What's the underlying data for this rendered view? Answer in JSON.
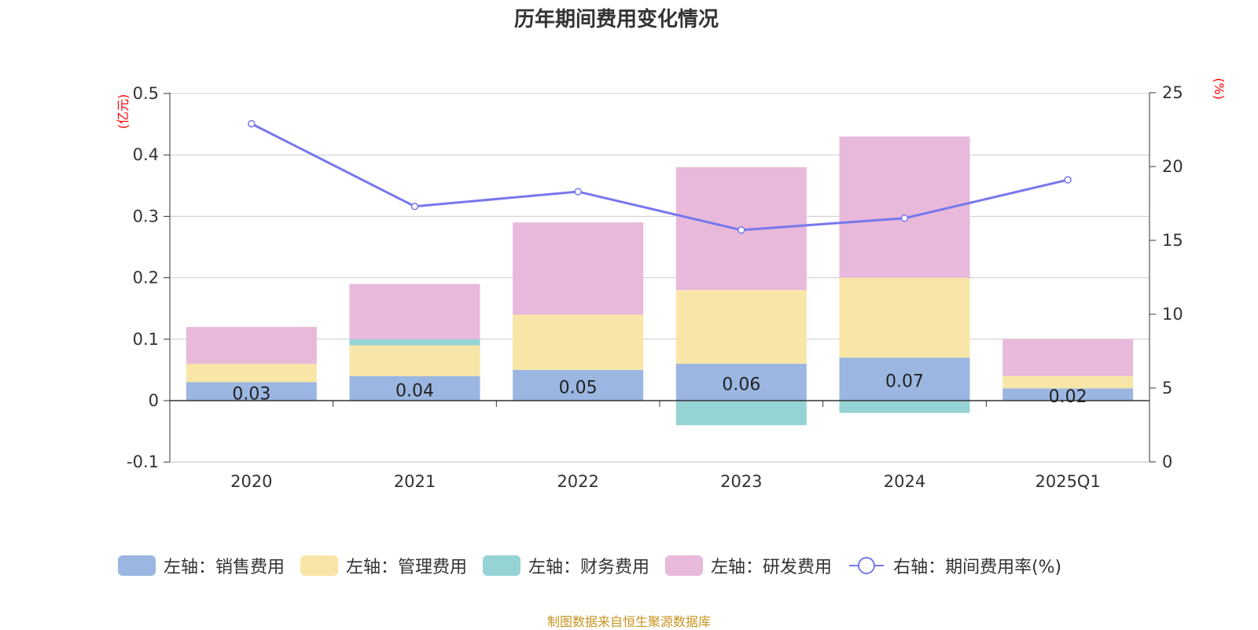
{
  "title": "历年期间费用变化情况",
  "source_note": "制图数据来自恒生聚源数据库",
  "colors": {
    "sales": "#9bb6e1",
    "admin": "#f7e6a7",
    "finance": "#95d3d4",
    "rd": "#e8b9da",
    "rate": "#7777ee",
    "axis_unit": "#ff0000",
    "grid": "#cccccc",
    "text": "#333333"
  },
  "chart_data": {
    "type": "bar",
    "stacked": true,
    "title": "历年期间费用变化情况",
    "categories": [
      "2020",
      "2021",
      "2022",
      "2023",
      "2024",
      "2025Q1"
    ],
    "y_left": {
      "unit_label": "(亿元)",
      "range": [
        -0.1,
        0.5
      ],
      "ticks": [
        -0.1,
        0,
        0.1,
        0.2,
        0.3,
        0.4,
        0.5
      ],
      "tick_labels": [
        "-0.1",
        "0",
        "0.1",
        "0.2",
        "0.3",
        "0.4",
        "0.5"
      ]
    },
    "y_right": {
      "unit_label": "(%)",
      "range": [
        0,
        25
      ],
      "ticks": [
        0,
        5,
        10,
        15,
        20,
        25
      ],
      "tick_labels": [
        "0",
        "5",
        "10",
        "15",
        "20",
        "25"
      ]
    },
    "grid": true,
    "legend_position": "bottom",
    "series": [
      {
        "name": "左轴：销售费用",
        "key": "sales",
        "type": "bar",
        "axis": "left",
        "values": [
          0.03,
          0.04,
          0.05,
          0.06,
          0.07,
          0.02
        ],
        "data_labels": [
          "0.03",
          "0.04",
          "0.05",
          "0.06",
          "0.07",
          "0.02"
        ]
      },
      {
        "name": "左轴：管理费用",
        "key": "admin",
        "type": "bar",
        "axis": "left",
        "values": [
          0.03,
          0.05,
          0.09,
          0.12,
          0.13,
          0.02
        ]
      },
      {
        "name": "左轴：财务费用",
        "key": "finance",
        "type": "bar",
        "axis": "left",
        "values": [
          0.0,
          0.01,
          0.0,
          -0.04,
          -0.02,
          0.0
        ]
      },
      {
        "name": "左轴：研发费用",
        "key": "rd",
        "type": "bar",
        "axis": "left",
        "values": [
          0.06,
          0.09,
          0.15,
          0.2,
          0.23,
          0.06
        ]
      },
      {
        "name": "右轴：期间费用率(%)",
        "key": "rate",
        "type": "line",
        "axis": "right",
        "values": [
          22.9,
          17.3,
          18.3,
          15.7,
          16.5,
          19.1
        ]
      }
    ]
  }
}
